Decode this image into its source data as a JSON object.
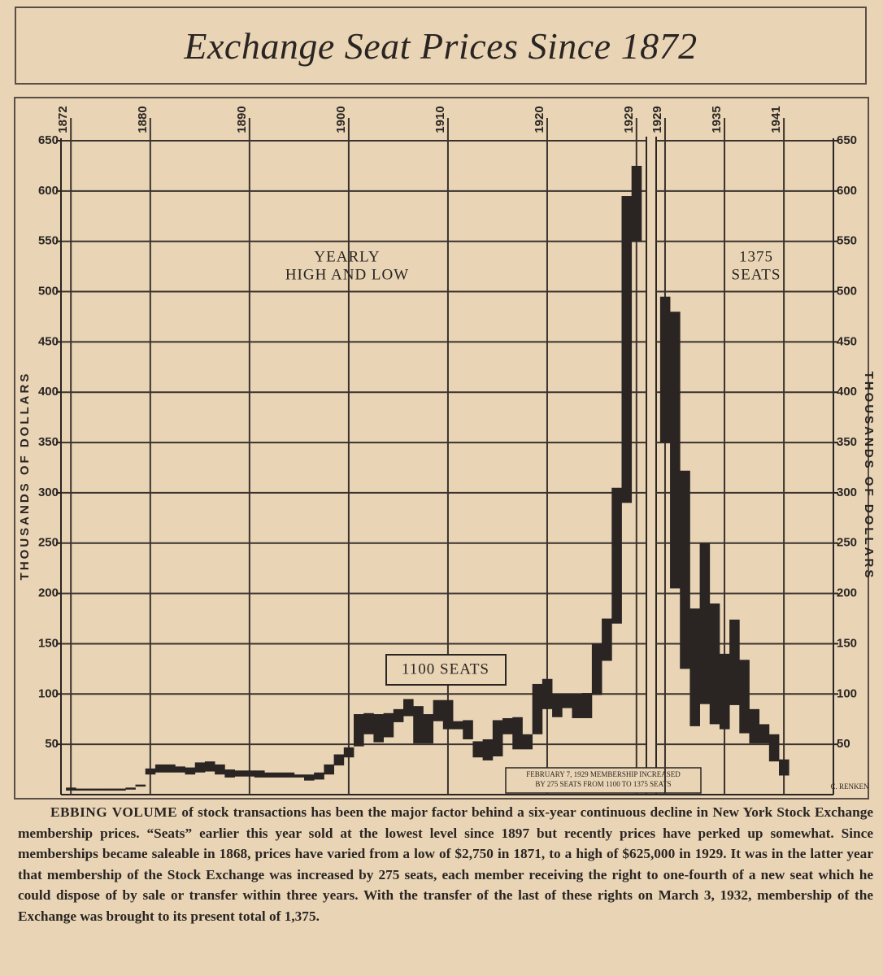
{
  "title": "Exchange Seat Prices Since 1872",
  "chart_data": [
    {
      "type": "range",
      "x": [
        1872,
        1873,
        1874,
        1875,
        1876,
        1877,
        1878,
        1879,
        1880,
        1881,
        1882,
        1883,
        1884,
        1885,
        1886,
        1887,
        1888,
        1889,
        1890,
        1891,
        1892,
        1893,
        1894,
        1895,
        1896,
        1897,
        1898,
        1899,
        1900,
        1901,
        1902,
        1903,
        1904,
        1905,
        1906,
        1907,
        1908,
        1909,
        1910,
        1911,
        1912,
        1913,
        1914,
        1915,
        1916,
        1917,
        1918,
        1919,
        1920,
        1921,
        1922,
        1923,
        1924,
        1925,
        1926,
        1927,
        1928,
        1929
      ],
      "high": [
        7,
        6,
        6,
        6,
        6,
        6,
        7,
        10,
        26,
        30,
        30,
        28,
        27,
        32,
        33,
        30,
        25,
        24,
        24,
        24,
        22,
        22,
        22,
        20,
        20,
        22,
        30,
        40,
        47,
        80,
        81,
        80,
        81,
        85,
        95,
        88,
        80,
        94,
        94,
        73,
        74,
        53,
        55,
        74,
        76,
        77,
        60,
        110,
        115,
        100,
        100,
        100,
        101,
        150,
        175,
        305,
        595,
        625
      ],
      "low": [
        4,
        4,
        4,
        4,
        4,
        4,
        5,
        8,
        20,
        22,
        22,
        22,
        20,
        22,
        23,
        20,
        17,
        18,
        18,
        17,
        17,
        17,
        17,
        17,
        14,
        15,
        20,
        29,
        37,
        48,
        60,
        52,
        57,
        72,
        78,
        51,
        51,
        73,
        65,
        65,
        55,
        37,
        34,
        38,
        60,
        45,
        45,
        60,
        85,
        77,
        86,
        76,
        76,
        99,
        133,
        170,
        290,
        550
      ],
      "color": "#2a2522",
      "xlim": [
        1871,
        1930
      ],
      "xticks": [
        1872,
        1880,
        1890,
        1900,
        1910,
        1920,
        1929
      ],
      "ylim": [
        0,
        650
      ],
      "yticks": [
        50,
        100,
        150,
        200,
        250,
        300,
        350,
        400,
        450,
        500,
        550,
        600,
        650
      ],
      "yaxis_side": "left",
      "grid": true,
      "ylabel": "THOUSANDS OF DOLLARS",
      "annotations": [
        "YEARLY",
        "HIGH AND LOW",
        "1100 SEATS"
      ],
      "note": [
        "FEBRUARY 7, 1929 MEMBERSHIP INCREASED",
        "BY 275 SEATS FROM 1100 TO 1375 SEATS"
      ]
    },
    {
      "type": "range",
      "x": [
        1929,
        1930,
        1931,
        1932,
        1933,
        1934,
        1935,
        1936,
        1937,
        1938,
        1939,
        1940,
        1941
      ],
      "high": [
        495,
        480,
        322,
        185,
        250,
        190,
        140,
        174,
        134,
        85,
        70,
        60,
        35
      ],
      "low": [
        350,
        205,
        125,
        68,
        90,
        70,
        65,
        89,
        61,
        51,
        51,
        33,
        19
      ],
      "color": "#2a2522",
      "xlim": [
        1928.1,
        1946
      ],
      "xticks": [
        1929,
        1935,
        1941
      ],
      "ylim": [
        0,
        650
      ],
      "yticks": [
        50,
        100,
        150,
        200,
        250,
        300,
        350,
        400,
        450,
        500,
        550,
        600,
        650
      ],
      "yaxis_side": "right",
      "grid": true,
      "ylabel": "THOUSANDS OF DOLLARS",
      "annotations": [
        "1375",
        "SEATS"
      ],
      "credit": "C. RENKEN"
    }
  ],
  "caption": {
    "lead": "EBBING VOLUME",
    "body": "of stock transactions has been the major factor behind a six-year continuous decline in New York Stock Exchange membership prices. “Seats” earlier this year sold at the lowest level since 1897 but recently prices have perked up somewhat. Since memberships became saleable in 1868, prices have varied from a low of $2,750 in 1871, to a high of $625,000 in 1929. It was in the latter year that membership of the Stock Exchange was increased by 275 seats, each member receiving the right to one-fourth of a new seat which he could dispose of by sale or transfer within three years. With the transfer of the last of these rights on March 3, 1932, membership of the Exchange was brought to its present total of 1,375."
  }
}
